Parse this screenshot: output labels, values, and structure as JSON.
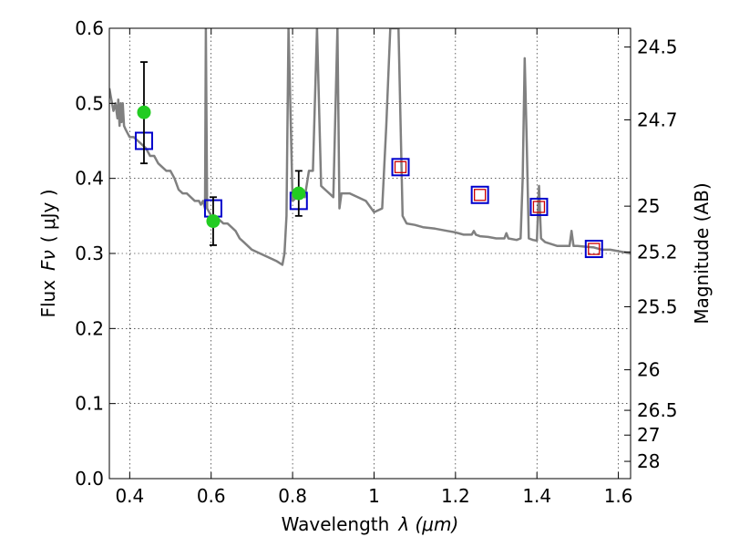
{
  "chart_data": {
    "type": "line",
    "title": "",
    "xlabel": "Wavelength",
    "xlabel_symbol": "λ (μm)",
    "ylabel": "Flux",
    "ylabel_symbol": "Fν",
    "ylabel_unit": "( μJy )",
    "ylabel_right": "Magnitude (AB)",
    "xlim": [
      0.35,
      1.63
    ],
    "ylim": [
      0.0,
      0.6
    ],
    "grid": true,
    "x_ticks": [
      0.4,
      0.6,
      0.8,
      1.0,
      1.2,
      1.4,
      1.6
    ],
    "x_tick_labels": [
      "0.4",
      "0.6",
      "0.8",
      "1",
      "1.2",
      "1.4",
      "1.6"
    ],
    "y_ticks": [
      0.0,
      0.1,
      0.2,
      0.3,
      0.4,
      0.5,
      0.6
    ],
    "y_tick_labels": [
      "0.0",
      "0.1",
      "0.2",
      "0.3",
      "0.4",
      "0.5",
      "0.6"
    ],
    "right_ticks": [
      {
        "label": "24.5",
        "flux": 0.575
      },
      {
        "label": "24.7",
        "flux": 0.478
      },
      {
        "label": "25",
        "flux": 0.363
      },
      {
        "label": "25.2",
        "flux": 0.302
      },
      {
        "label": "25.5",
        "flux": 0.229
      },
      {
        "label": "26",
        "flux": 0.145
      },
      {
        "label": "26.5",
        "flux": 0.091
      },
      {
        "label": "27",
        "flux": 0.058
      },
      {
        "label": "28",
        "flux": 0.023
      }
    ],
    "series": [
      {
        "name": "model spectrum",
        "kind": "line",
        "color": "#808080",
        "x": [
          0.35,
          0.355,
          0.36,
          0.365,
          0.37,
          0.372,
          0.375,
          0.378,
          0.38,
          0.383,
          0.386,
          0.39,
          0.395,
          0.4,
          0.41,
          0.42,
          0.43,
          0.44,
          0.45,
          0.46,
          0.47,
          0.48,
          0.49,
          0.5,
          0.51,
          0.52,
          0.53,
          0.54,
          0.55,
          0.56,
          0.57,
          0.575,
          0.58,
          0.585,
          0.587,
          0.59,
          0.595,
          0.6,
          0.61,
          0.62,
          0.63,
          0.64,
          0.65,
          0.66,
          0.67,
          0.68,
          0.7,
          0.72,
          0.74,
          0.76,
          0.775,
          0.78,
          0.785,
          0.79,
          0.8,
          0.81,
          0.815,
          0.82,
          0.83,
          0.84,
          0.85,
          0.86,
          0.87,
          0.88,
          0.89,
          0.9,
          0.91,
          0.915,
          0.92,
          0.94,
          0.96,
          0.98,
          1.0,
          1.02,
          1.03,
          1.04,
          1.05,
          1.06,
          1.07,
          1.08,
          1.1,
          1.12,
          1.15,
          1.18,
          1.2,
          1.22,
          1.24,
          1.245,
          1.25,
          1.26,
          1.28,
          1.3,
          1.32,
          1.325,
          1.33,
          1.35,
          1.36,
          1.365,
          1.37,
          1.375,
          1.38,
          1.39,
          1.4,
          1.405,
          1.41,
          1.42,
          1.45,
          1.48,
          1.485,
          1.49,
          1.5,
          1.52,
          1.54,
          1.56,
          1.58,
          1.6,
          1.63
        ],
        "y": [
          0.52,
          0.505,
          0.49,
          0.5,
          0.48,
          0.505,
          0.47,
          0.5,
          0.475,
          0.5,
          0.47,
          0.465,
          0.46,
          0.455,
          0.455,
          0.45,
          0.445,
          0.44,
          0.43,
          0.43,
          0.42,
          0.415,
          0.41,
          0.41,
          0.4,
          0.385,
          0.38,
          0.38,
          0.375,
          0.37,
          0.37,
          0.365,
          0.37,
          0.36,
          0.6,
          0.36,
          0.355,
          0.35,
          0.35,
          0.345,
          0.34,
          0.34,
          0.335,
          0.33,
          0.32,
          0.315,
          0.305,
          0.3,
          0.295,
          0.29,
          0.285,
          0.3,
          0.35,
          0.6,
          0.37,
          0.375,
          0.38,
          0.38,
          0.375,
          0.41,
          0.41,
          0.6,
          0.39,
          0.385,
          0.38,
          0.375,
          0.6,
          0.36,
          0.38,
          0.38,
          0.375,
          0.37,
          0.355,
          0.36,
          0.47,
          0.6,
          0.6,
          0.6,
          0.35,
          0.34,
          0.338,
          0.335,
          0.333,
          0.33,
          0.328,
          0.325,
          0.325,
          0.33,
          0.325,
          0.323,
          0.322,
          0.32,
          0.32,
          0.327,
          0.32,
          0.318,
          0.32,
          0.4,
          0.56,
          0.45,
          0.32,
          0.318,
          0.317,
          0.39,
          0.32,
          0.315,
          0.31,
          0.31,
          0.33,
          0.31,
          0.31,
          0.309,
          0.308,
          0.305,
          0.305,
          0.303,
          0.3
        ]
      },
      {
        "name": "blue squares",
        "kind": "marker",
        "marker": "square",
        "color": "#0000cc",
        "x": [
          0.435,
          0.605,
          0.815,
          1.065,
          1.26,
          1.405,
          1.54
        ],
        "y": [
          0.45,
          0.36,
          0.37,
          0.415,
          0.378,
          0.362,
          0.306
        ]
      },
      {
        "name": "red squares",
        "kind": "marker",
        "marker": "square",
        "color": "#cc0000",
        "x": [
          1.065,
          1.26,
          1.405,
          1.54
        ],
        "y": [
          0.415,
          0.378,
          0.362,
          0.306
        ]
      },
      {
        "name": "observed photometry",
        "kind": "marker",
        "marker": "circle",
        "color": "#22cc22",
        "x": [
          0.435,
          0.605,
          0.815
        ],
        "y": [
          0.488,
          0.343,
          0.38
        ],
        "yerr_low": [
          0.42,
          0.311,
          0.35
        ],
        "yerr_high": [
          0.555,
          0.375,
          0.41
        ]
      }
    ]
  }
}
